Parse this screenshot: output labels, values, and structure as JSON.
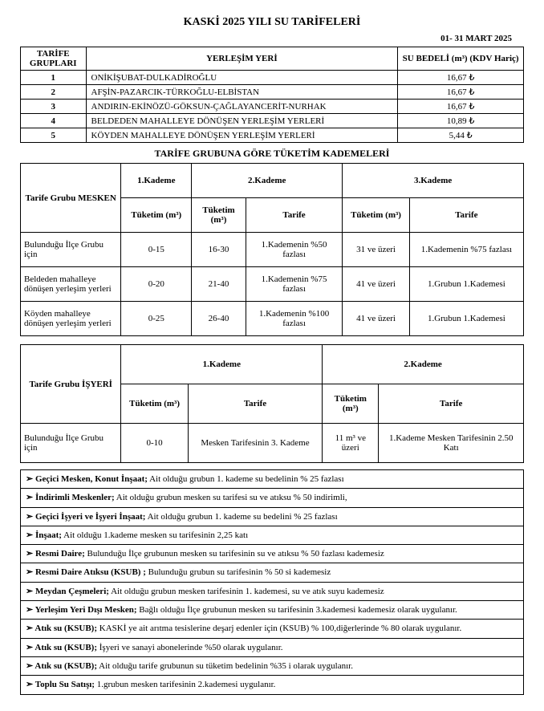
{
  "title": "KASKİ 2025 YILI SU TARİFELERİ",
  "date": "01- 31 MART  2025",
  "tarifeHeaders": {
    "group": "TARİFE GRUPLARI",
    "place": "YERLEŞİM YERİ",
    "price": "SU BEDELİ (m³) (KDV Hariç)"
  },
  "tarifeRows": [
    {
      "id": "1",
      "place": "ONİKİŞUBAT-DULKADİROĞLU",
      "price": "16,67 ₺"
    },
    {
      "id": "2",
      "place": "AFŞİN-PAZARCIK-TÜRKOĞLU-ELBİSTAN",
      "price": "16,67 ₺"
    },
    {
      "id": "3",
      "place": "ANDIRIN-EKİNÖZÜ-GÖKSUN-ÇAĞLAYANCERİT-NURHAK",
      "price": "16,67 ₺"
    },
    {
      "id": "4",
      "place": "BELDEDEN MAHALLEYE DÖNÜŞEN YERLEŞİM YERLERİ",
      "price": "10,89 ₺"
    },
    {
      "id": "5",
      "place": "KÖYDEN MAHALLEYE DÖNÜŞEN YERLEŞİM YERLERİ",
      "price": "5,44 ₺"
    }
  ],
  "kademeTitle": "TARİFE GRUBUNA GÖRE TÜKETİM KADEMELERİ",
  "mesken": {
    "rowHeader": "Tarife Grubu MESKEN",
    "k1": "1.Kademe",
    "k2": "2.Kademe",
    "k3": "3.Kademe",
    "tuketim": "Tüketim (m³)",
    "tarife": "Tarife",
    "rows": [
      {
        "name": "Bulunduğu İlçe Grubu için",
        "t1": "0-15",
        "t2": "16-30",
        "tar2": "1.Kademenin %50 fazlası",
        "t3": "31 ve üzeri",
        "tar3": "1.Kademenin %75 fazlası"
      },
      {
        "name": "Beldeden mahalleye dönüşen yerleşim yerleri",
        "t1": "0-20",
        "t2": "21-40",
        "tar2": "1.Kademenin %75 fazlası",
        "t3": "41 ve üzeri",
        "tar3": "1.Grubun 1.Kademesi"
      },
      {
        "name": "Köyden mahalleye dönüşen yerleşim yerleri",
        "t1": "0-25",
        "t2": "26-40",
        "tar2": "1.Kademenin %100 fazlası",
        "t3": "41 ve üzeri",
        "tar3": "1.Grubun 1.Kademesi"
      }
    ]
  },
  "isyeri": {
    "rowHeader": "Tarife Grubu İŞYERİ",
    "k1": "1.Kademe",
    "k2": "2.Kademe",
    "tuketim": "Tüketim (m³)",
    "tarife": "Tarife",
    "row": {
      "name": "Bulunduğu İlçe Grubu için",
      "t1": "0-10",
      "tar1": "Mesken Tarifesinin 3. Kademe",
      "t2": "11 m³ ve üzeri",
      "tar2": "1.Kademe Mesken Tarifesinin 2.50 Katı"
    }
  },
  "notes": [
    {
      "label": "Geçici Mesken, Konut İnşaat;",
      "text": " Ait olduğu grubun 1. kademe su bedelinin % 25 fazlası"
    },
    {
      "label": "İndirimli Meskenler;",
      "text": " Ait olduğu grubun mesken su tarifesi su ve atıksu % 50 indirimli,"
    },
    {
      "label": "Geçici İşyeri ve İşyeri İnşaat;",
      "text": " Ait olduğu grubun 1. kademe su bedelini % 25 fazlası"
    },
    {
      "label": "İnşaat;",
      "text": " Ait olduğu 1.kademe mesken su tarifesinin 2,25 katı"
    },
    {
      "label": "Resmi Daire;",
      "text": " Bulunduğu İlçe grubunun mesken su tarifesinin su ve atıksu % 50 fazlası kademesiz"
    },
    {
      "label": "Resmi Daire Atıksu (KSUB) ;",
      "text": " Bulunduğu grubun su tarifesinin % 50 si kademesiz"
    },
    {
      "label": "Meydan Çeşmeleri;",
      "text": " Ait olduğu grubun mesken tarifesinin 1. kademesi, su ve atık suyu kademesiz"
    },
    {
      "label": "Yerleşim Yeri Dışı Mesken;",
      "text": " Bağlı olduğu İlçe grubunun mesken su tarifesinin 3.kademesi kademesiz olarak uygulanır."
    },
    {
      "label": "Atık su (KSUB);",
      "text": "  KASKİ ye ait arıtma tesislerine deşarj edenler için (KSUB) % 100,diğerlerinde % 80 olarak uygulanır."
    },
    {
      "label": "Atık su (KSUB);",
      "text": " İşyeri ve sanayi abonelerinde %50 olarak uygulanır."
    },
    {
      "label": "Atık su (KSUB);",
      "text": " Ait olduğu tarife grubunun su tüketim bedelinin %35 i olarak uygulanır."
    },
    {
      "label": "Toplu Su Satışı;",
      "text": "  1.grubun mesken tarifesinin 2.kademesi uygulanır."
    }
  ]
}
